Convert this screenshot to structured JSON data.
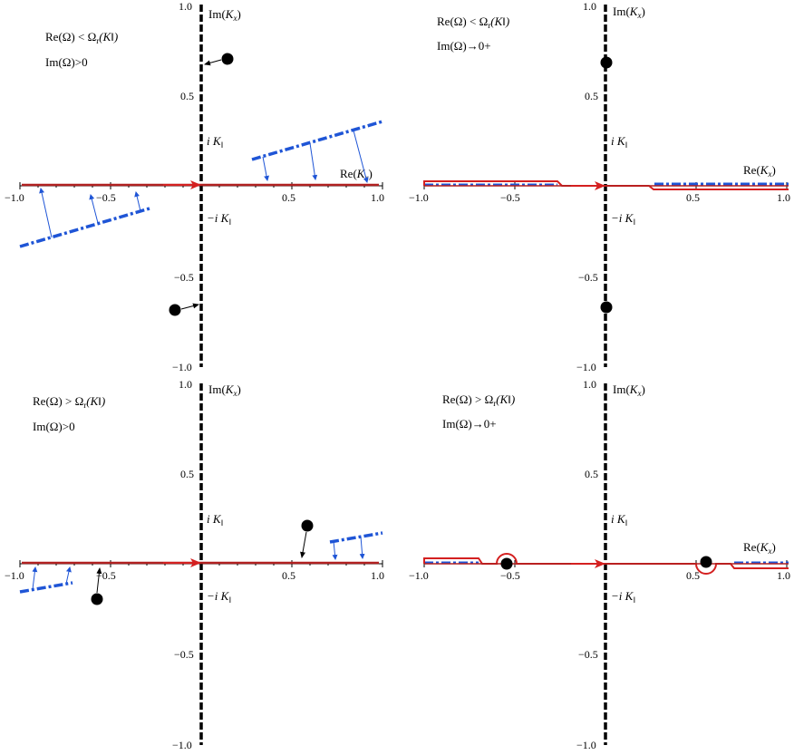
{
  "panels": [
    {
      "id": "top-left",
      "condition_line1": "Re(Ω) < Ω",
      "condition_sub": "r",
      "condition_arg": "(K‖)",
      "condition_line2": "Im(Ω)>0",
      "x_ticks": [
        "−1.0",
        "−0.5",
        "0.5",
        "1.0"
      ],
      "y_ticks": [
        "1.0",
        "0.5",
        "−0.5",
        "−1.0"
      ],
      "im_axis_label": "Im",
      "re_axis_label": "Re",
      "k_symbol": "K",
      "k_sub": "x",
      "branch_upper": "i K",
      "branch_lower": "−i K",
      "branch_sub": "‖"
    },
    {
      "id": "top-right",
      "condition_line1": "Re(Ω) < Ω",
      "condition_sub": "r",
      "condition_arg": "(K‖)",
      "condition_line2": "Im(Ω)→0+",
      "x_ticks": [
        "−1.0",
        "−0.5",
        "0.5",
        "1.0"
      ],
      "y_ticks": [
        "1.0",
        "0.5",
        "−0.5",
        "−1.0"
      ],
      "im_axis_label": "Im",
      "re_axis_label": "Re",
      "k_symbol": "K",
      "k_sub": "x",
      "branch_upper": "i K",
      "branch_lower": "−i K",
      "branch_sub": "‖"
    },
    {
      "id": "bottom-left",
      "condition_line1": "Re(Ω) > Ω",
      "condition_sub": "r",
      "condition_arg": "(K‖)",
      "condition_line2": "Im(Ω)>0",
      "x_ticks": [
        "−1.0",
        "−0.5",
        "0.5",
        "1.0"
      ],
      "y_ticks": [
        "1.0",
        "0.5",
        "−0.5",
        "−1.0"
      ],
      "im_axis_label": "Im",
      "re_axis_label": "Re",
      "k_symbol": "K",
      "k_sub": "x",
      "branch_upper": "i K",
      "branch_lower": "−i K",
      "branch_sub": "‖"
    },
    {
      "id": "bottom-right",
      "condition_line1": "Re(Ω) > Ω",
      "condition_sub": "r",
      "condition_arg": "(K‖)",
      "condition_line2": "Im(Ω)→0+",
      "x_ticks": [
        "−1.0",
        "−0.5",
        "0.5",
        "1.0"
      ],
      "y_ticks": [
        "1.0",
        "0.5",
        "−0.5",
        "−1.0"
      ],
      "im_axis_label": "Im",
      "re_axis_label": "Re",
      "k_symbol": "K",
      "k_sub": "x",
      "branch_upper": "i K",
      "branch_lower": "−i K",
      "branch_sub": "‖"
    }
  ],
  "colors": {
    "contour": "#d42020",
    "branch_cut": "#1f55d6",
    "axis": "#000000",
    "pole": "#000000"
  }
}
